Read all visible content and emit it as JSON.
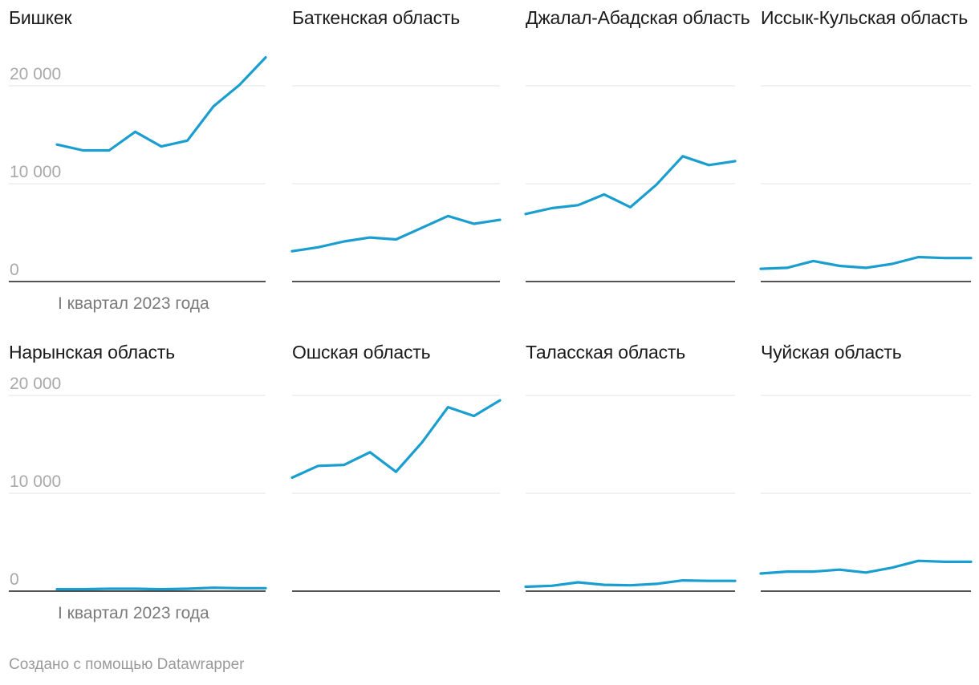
{
  "footer": "Создано с помощью Datawrapper",
  "chart_data": {
    "type": "line",
    "layout": "small-multiples",
    "grid": true,
    "line_color": "#1a9ecf",
    "ylim": [
      0,
      20000
    ],
    "yticks": [
      {
        "value": 0,
        "label": "0"
      },
      {
        "value": 10000,
        "label": "10 000"
      },
      {
        "value": 20000,
        "label": "20 000"
      }
    ],
    "x_label": "I квартал 2023 года",
    "panels": [
      {
        "title": "Бишкек",
        "values": [
          14000,
          13400,
          13400,
          15300,
          13800,
          14400,
          17900,
          20100,
          22900
        ]
      },
      {
        "title": "Баткенская область",
        "values": [
          3100,
          3500,
          4100,
          4500,
          4300,
          5500,
          6700,
          5900,
          6300
        ]
      },
      {
        "title": "Джалал-Абадская область",
        "values": [
          6900,
          7500,
          7800,
          8900,
          7600,
          9900,
          12800,
          11900,
          12300
        ]
      },
      {
        "title": "Иссык-Кульская область",
        "values": [
          1300,
          1400,
          2100,
          1600,
          1400,
          1800,
          2500,
          2400,
          2400
        ]
      },
      {
        "title": "Нарынская область",
        "values": [
          200,
          200,
          250,
          250,
          200,
          250,
          350,
          300,
          300
        ]
      },
      {
        "title": "Ошская область",
        "values": [
          11600,
          12800,
          12900,
          14200,
          12200,
          15200,
          18800,
          17900,
          19500
        ]
      },
      {
        "title": "Таласская область",
        "values": [
          450,
          550,
          900,
          650,
          600,
          750,
          1100,
          1050,
          1050
        ]
      },
      {
        "title": "Чуйская область",
        "values": [
          1800,
          2000,
          2000,
          2200,
          1900,
          2400,
          3100,
          3000,
          3000
        ]
      }
    ]
  }
}
